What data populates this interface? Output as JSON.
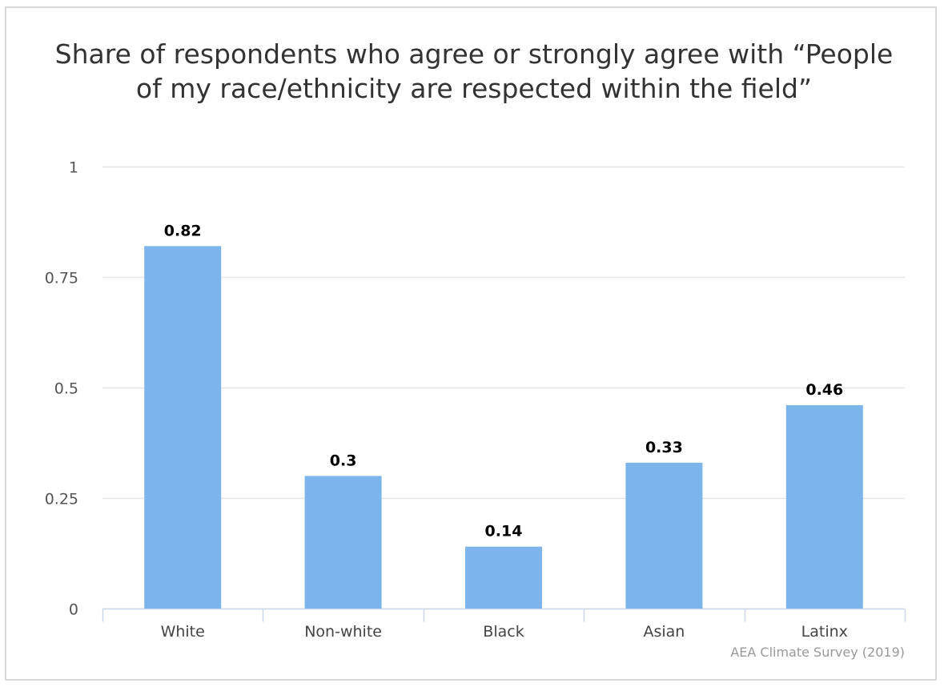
{
  "chart_data": {
    "type": "bar",
    "title": "Share of respondents who agree or strongly agree with “People of my race/ethnicity are respected within the field”",
    "categories": [
      "White",
      "Non-white",
      "Black",
      "Asian",
      "Latinx"
    ],
    "values": [
      0.82,
      0.3,
      0.14,
      0.33,
      0.46
    ],
    "data_labels": [
      "0.82",
      "0.3",
      "0.14",
      "0.33",
      "0.46"
    ],
    "yticks": [
      0,
      0.25,
      0.5,
      0.75,
      1
    ],
    "ytick_labels": [
      "0",
      "0.25",
      "0.5",
      "0.75",
      "1"
    ],
    "ylim": [
      0,
      1
    ],
    "xlabel": "",
    "ylabel": "",
    "grid": true,
    "legend": "none",
    "bar_color": "#7cb5ec",
    "source": "AEA Climate Survey (2019)"
  }
}
